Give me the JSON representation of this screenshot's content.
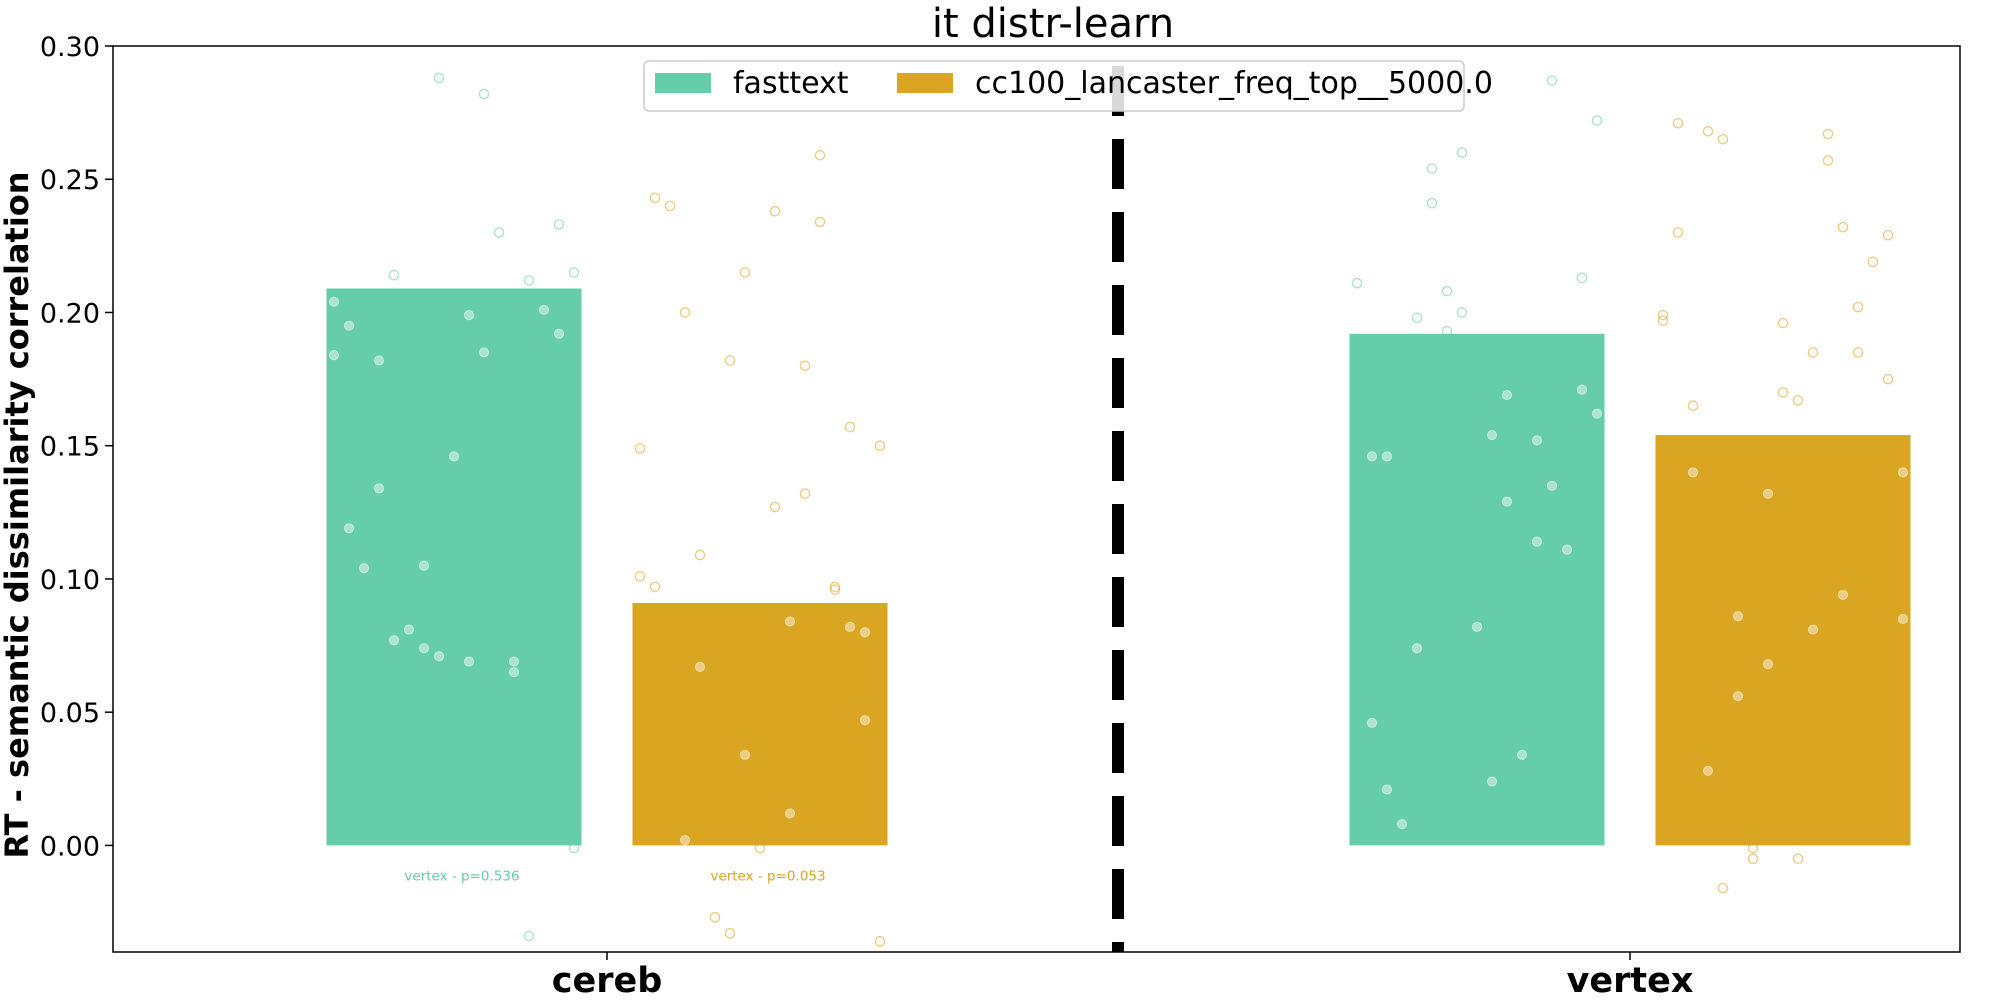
{
  "chart_data": {
    "type": "bar",
    "title": "it distr-learn",
    "xlabel": "",
    "ylabel": "RT - semantic dissimilarity correlation",
    "ylim": [
      -0.04,
      0.3
    ],
    "yticks": [
      "0.00",
      "0.05",
      "0.10",
      "0.15",
      "0.20",
      "0.25",
      "0.30"
    ],
    "ytick_values": [
      0.0,
      0.05,
      0.1,
      0.15,
      0.2,
      0.25,
      0.3
    ],
    "categories": [
      "cereb",
      "vertex"
    ],
    "legend_position": "top-center",
    "grid": false,
    "divider": "dashed vertical line between categories",
    "series": [
      {
        "name": "fasttext",
        "color": "#66cdaa",
        "values": [
          0.209,
          0.192
        ],
        "points": [
          [
            0.184,
            0.134,
            0.105,
            0.069,
            0.069,
            0.192,
            0.195,
            0.077,
            0.071,
            0.185,
            0.212,
            0.215,
            0.104,
            0.081,
            0.146,
            0.23,
            0.201,
            0.204,
            0.182,
            0.074,
            0.199,
            0.065,
            0.233,
            0.119,
            0.214,
            0.288,
            0.282,
            -0.034,
            -0.001
          ],
          [
            0.208,
            0.024,
            0.152,
            0.213,
            0.046,
            0.074,
            0.26,
            0.169,
            0.135,
            0.162,
            0.021,
            0.241,
            0.082,
            0.034,
            0.111,
            0.211,
            0.008,
            0.193,
            0.154,
            0.114,
            0.171,
            0.146,
            0.198,
            0.2,
            0.129,
            0.287,
            0.272,
            0.146,
            0.254
          ]
        ]
      },
      {
        "name": "cc100_lancaster_freq_top__5000.0",
        "color": "#daa520",
        "values": [
          0.091,
          0.154
        ],
        "points": [
          [
            0.132,
            0.157,
            0.149,
            0.2,
            0.182,
            0.127,
            0.259,
            0.08,
            0.243,
            0.067,
            0.034,
            0.012,
            0.097,
            -0.036,
            0.24,
            -0.027,
            -0.001,
            0.18,
            0.082,
            0.101,
            0.002,
            -0.033,
            0.238,
            0.234,
            0.047,
            0.097,
            0.109,
            0.215,
            0.084,
            0.096,
            0.15
          ],
          [
            0.199,
            0.028,
            -0.001,
            0.167,
            0.232,
            0.229,
            0.23,
            0.265,
            0.132,
            0.185,
            0.185,
            0.085,
            0.165,
            0.086,
            0.196,
            0.267,
            0.219,
            0.197,
            0.268,
            -0.005,
            -0.005,
            0.094,
            0.175,
            0.271,
            -0.016,
            0.068,
            0.081,
            0.202,
            0.14,
            0.14,
            0.056,
            0.17,
            0.257
          ]
        ]
      }
    ],
    "annotations": [
      {
        "text": "vertex - p=0.536",
        "series": 0,
        "category": 0,
        "y": -0.008
      },
      {
        "text": "vertex - p=0.053",
        "series": 1,
        "category": 0,
        "y": -0.008
      }
    ]
  }
}
